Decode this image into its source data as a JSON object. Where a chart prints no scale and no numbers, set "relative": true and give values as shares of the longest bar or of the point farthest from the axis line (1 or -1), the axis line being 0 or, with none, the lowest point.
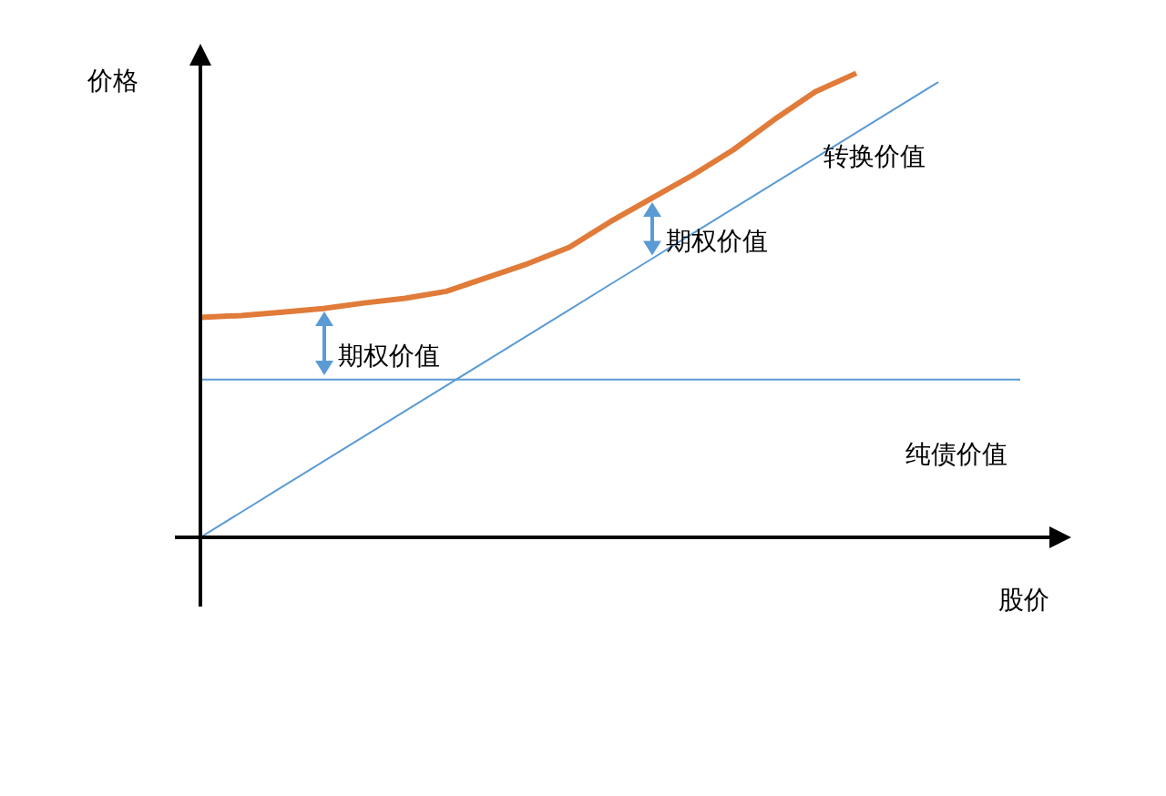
{
  "chart_data": {
    "type": "line",
    "relative": true,
    "xlabel": "股价",
    "ylabel": "价格",
    "legend": false,
    "marker": "none",
    "grid": false,
    "categories": [
      null,
      null,
      null,
      null,
      null,
      null,
      null,
      null,
      null,
      null,
      null,
      null,
      null,
      null,
      null,
      null,
      null,
      null,
      null,
      null,
      null
    ],
    "series": [
      {
        "name": "纯债价值",
        "color": "#5b9bd5",
        "values": [
          0.34,
          0.34,
          0.34,
          0.34,
          0.34,
          0.34,
          0.34,
          0.34,
          0.34,
          0.34,
          0.34,
          0.34,
          0.34,
          0.34,
          0.34,
          0.34,
          0.34,
          0.34,
          0.34,
          0.34,
          0.34
        ]
      },
      {
        "name": "转换价值",
        "color": "#5b9bd5",
        "values": [
          0,
          0.0545,
          0.109,
          0.1635,
          0.218,
          0.2725,
          0.327,
          0.3815,
          0.436,
          0.4905,
          0.545,
          0.5995,
          0.654,
          0.7085,
          0.763,
          0.8175,
          0.872,
          0.9265,
          0.981,
          null,
          null
        ]
      },
      {
        "color": "#e07b39",
        "values": [
          0.474,
          0.478,
          0.485,
          0.493,
          0.505,
          0.515,
          0.53,
          0.56,
          0.59,
          0.625,
          0.68,
          0.73,
          0.78,
          0.835,
          0.9,
          0.96,
          1.0,
          null,
          null,
          null,
          null
        ]
      }
    ],
    "annotations": [
      "期权价值",
      "期权价值"
    ]
  }
}
